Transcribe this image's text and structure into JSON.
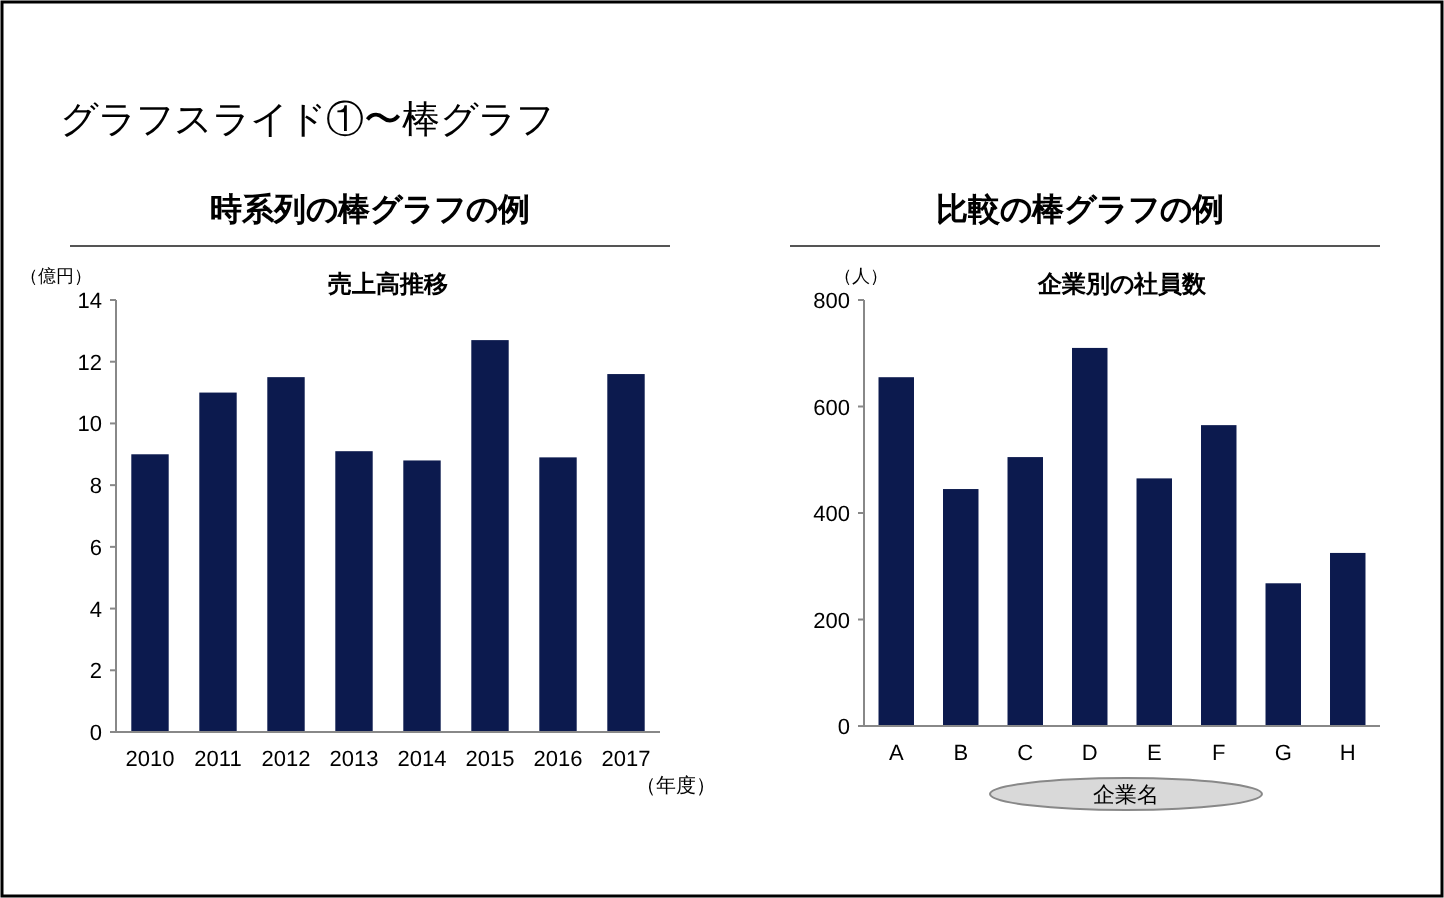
{
  "chart_data": [
    {
      "type": "bar",
      "title": "時系列の棒グラフの例",
      "subtitle": "売上高推移",
      "ylabel": "（億円）",
      "xlabel": "（年度）",
      "annotations": [
        "グラフスライド①〜棒グラフ"
      ],
      "categories": [
        "2010",
        "2011",
        "2012",
        "2013",
        "2014",
        "2015",
        "2016",
        "2017"
      ],
      "values": [
        9.0,
        11.0,
        11.5,
        9.1,
        8.8,
        12.7,
        8.9,
        11.6
      ],
      "color": "#0c1a4e",
      "ylim": [
        0,
        14
      ],
      "yticks": [
        0,
        2,
        4,
        6,
        8,
        10,
        12,
        14
      ],
      "grid": false
    },
    {
      "type": "bar",
      "title": "比較の棒グラフの例",
      "subtitle": "企業別の社員数",
      "ylabel": "（人）",
      "xlabel": "企業名",
      "categories": [
        "A",
        "B",
        "C",
        "D",
        "E",
        "F",
        "G",
        "H"
      ],
      "values": [
        655,
        445,
        505,
        710,
        465,
        565,
        268,
        325
      ],
      "color": "#0c1a4e",
      "ylim": [
        0,
        800
      ],
      "yticks": [
        0,
        200,
        400,
        600,
        800
      ],
      "grid": false
    }
  ]
}
